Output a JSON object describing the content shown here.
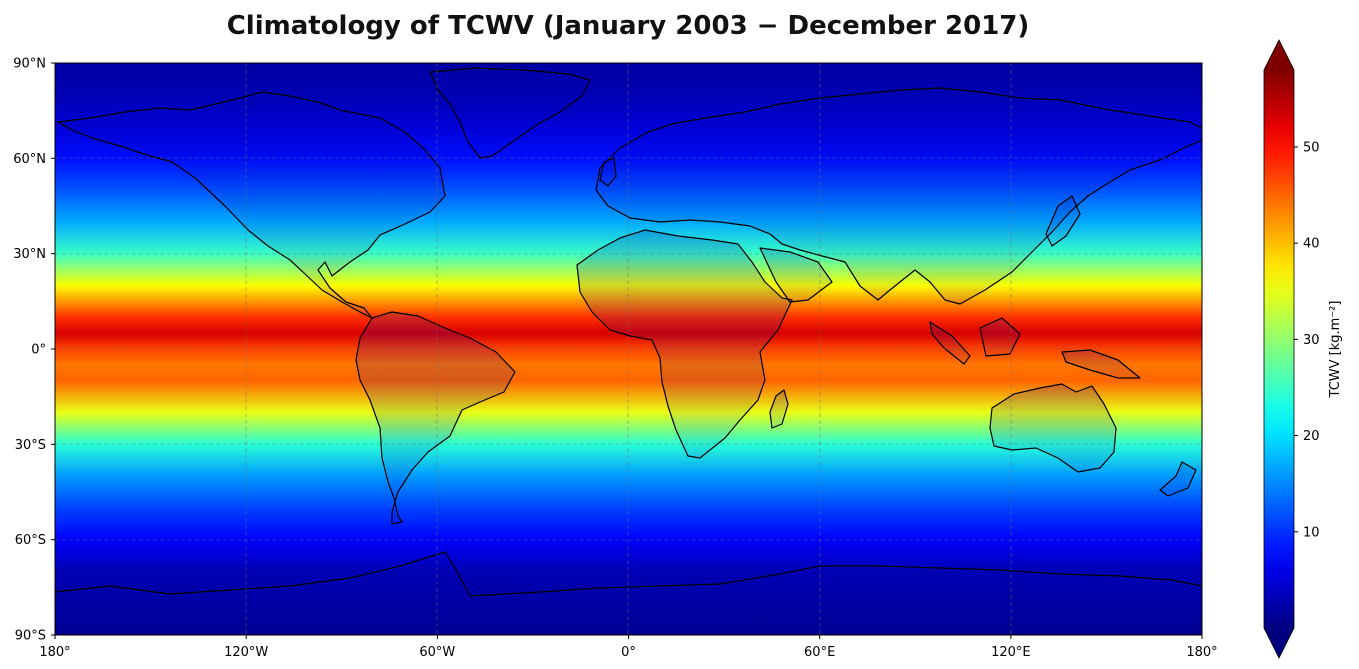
{
  "chart_data": {
    "type": "heatmap",
    "title": "Climatology of TCWV (January 2003  −  December 2017)",
    "projection": "PlateCarree",
    "colormap": "jet",
    "grid": true,
    "xlim": [
      -180,
      180
    ],
    "ylim": [
      -90,
      90
    ],
    "x_ticks": [
      {
        "value": -180,
        "label": "180°"
      },
      {
        "value": -120,
        "label": "120°W"
      },
      {
        "value": -60,
        "label": "60°W"
      },
      {
        "value": 0,
        "label": "0°"
      },
      {
        "value": 60,
        "label": "60°E"
      },
      {
        "value": 120,
        "label": "120°E"
      },
      {
        "value": 180,
        "label": "180°"
      }
    ],
    "y_ticks": [
      {
        "value": 90,
        "label": "90°N"
      },
      {
        "value": 60,
        "label": "60°N"
      },
      {
        "value": 30,
        "label": "30°N"
      },
      {
        "value": 0,
        "label": "0°"
      },
      {
        "value": -30,
        "label": "30°S"
      },
      {
        "value": -60,
        "label": "60°S"
      },
      {
        "value": -90,
        "label": "90°S"
      }
    ],
    "colorbar": {
      "label": "TCWV [kg.m⁻²]",
      "range": [
        0,
        58
      ],
      "extend": "both",
      "ticks": [
        10,
        20,
        30,
        40,
        50
      ]
    },
    "zonal_profile": {
      "lat": [
        90,
        80,
        70,
        60,
        50,
        40,
        30,
        20,
        10,
        5,
        0,
        -5,
        -10,
        -20,
        -30,
        -40,
        -50,
        -60,
        -70,
        -80,
        -90
      ],
      "tcwv": [
        2,
        3,
        5,
        8,
        12,
        17,
        25,
        36,
        48,
        53,
        47,
        44,
        45,
        35,
        24,
        16,
        11,
        7,
        3,
        2,
        1
      ]
    }
  }
}
